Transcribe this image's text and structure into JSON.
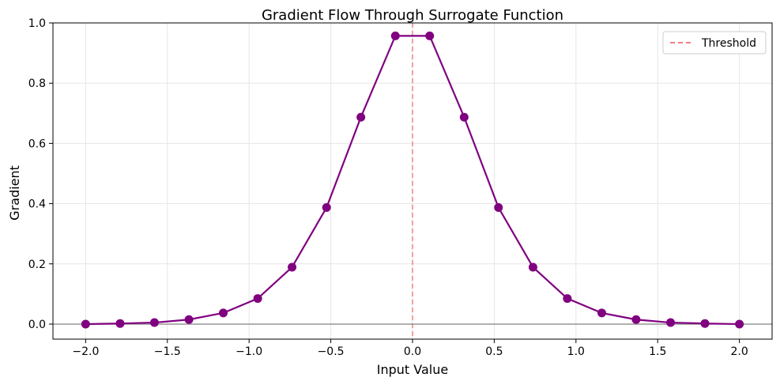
{
  "chart_data": {
    "type": "line",
    "title": "Gradient Flow Through Surrogate Function",
    "xlabel": "Input Value",
    "ylabel": "Gradient",
    "xlim": [
      -2.2,
      2.2
    ],
    "ylim": [
      -0.05,
      1.0
    ],
    "grid": true,
    "legend_placement": "top-right",
    "x_ticks": [
      -2.0,
      -1.5,
      -1.0,
      -0.5,
      0.0,
      0.5,
      1.0,
      1.5,
      2.0
    ],
    "x_tick_labels": [
      "−2.0",
      "−1.5",
      "−1.0",
      "−0.5",
      "0.0",
      "0.5",
      "1.0",
      "1.5",
      "2.0"
    ],
    "y_ticks": [
      0.0,
      0.2,
      0.4,
      0.6,
      0.8,
      1.0
    ],
    "y_tick_labels": [
      "0.0",
      "0.2",
      "0.4",
      "0.6",
      "0.8",
      "1.0"
    ],
    "series": [
      {
        "color": "#800080",
        "x": [
          -2.0,
          -1.789,
          -1.579,
          -1.368,
          -1.158,
          -0.947,
          -0.737,
          -0.526,
          -0.316,
          -0.105,
          0.105,
          0.316,
          0.526,
          0.737,
          0.947,
          1.158,
          1.368,
          1.579,
          1.789,
          2.0
        ],
        "y": [
          0.0,
          0.002,
          0.005,
          0.015,
          0.037,
          0.085,
          0.189,
          0.387,
          0.687,
          0.957,
          0.957,
          0.687,
          0.387,
          0.189,
          0.085,
          0.037,
          0.015,
          0.005,
          0.002,
          0.0
        ]
      }
    ],
    "reference_lines": [
      {
        "orientation": "vertical",
        "value": 0.0,
        "name": "Threshold",
        "color": "#f08080",
        "style": "dashed"
      },
      {
        "orientation": "horizontal",
        "value": 0.0,
        "color": "#808080",
        "style": "solid"
      }
    ]
  }
}
